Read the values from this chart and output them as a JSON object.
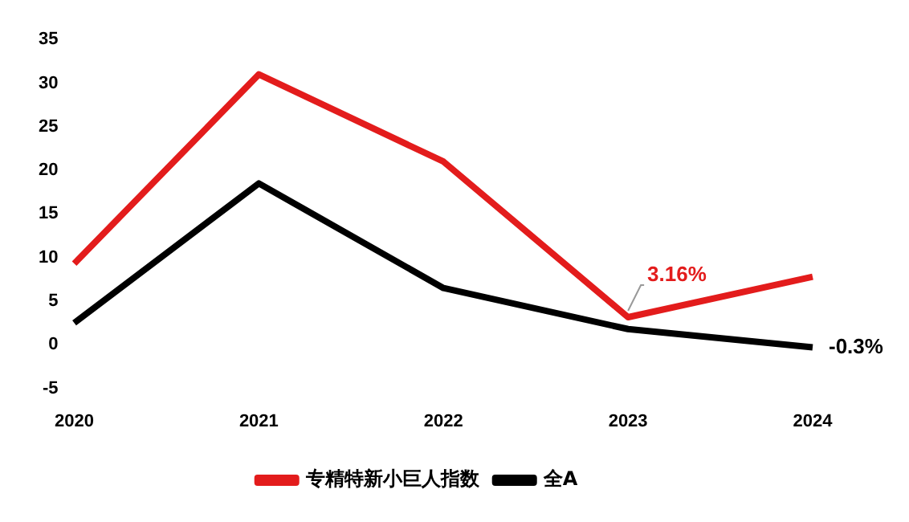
{
  "chart_data": {
    "type": "line",
    "categories": [
      "2020",
      "2021",
      "2022",
      "2023",
      "2024"
    ],
    "series": [
      {
        "name": "专精特新小巨人指数",
        "color": "#e31c1c",
        "values": [
          9.3,
          31,
          21,
          3.16,
          7.8
        ]
      },
      {
        "name": "全A",
        "color": "#000000",
        "values": [
          2.5,
          18.5,
          6.5,
          1.8,
          -0.3
        ]
      }
    ],
    "ylim": [
      -5,
      35
    ],
    "yticks": [
      -5,
      0,
      5,
      10,
      15,
      20,
      25,
      30,
      35
    ],
    "grid": false,
    "legend": "bottom",
    "marker": "none",
    "line_style": "solid",
    "annotations": [
      {
        "text": "3.16%",
        "x": "2023",
        "y": 3.16
      },
      {
        "text": "-0.3%",
        "x": "2024",
        "y": -0.3
      }
    ]
  }
}
